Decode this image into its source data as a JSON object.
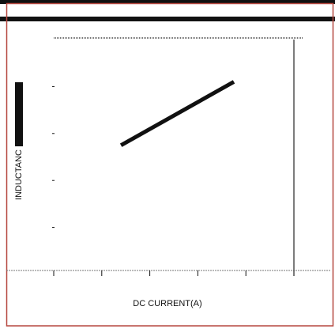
{
  "chart_data": {
    "type": "line",
    "xlabel": "DC CURRENT(A)",
    "ylabel": "INDUCTANC",
    "x_tick_count": 6,
    "y_tick_count": 5,
    "xlim": [
      0,
      5
    ],
    "ylim": [
      0,
      5
    ],
    "series": [
      {
        "values": [
          {
            "x": 1.4,
            "y": 2.75
          },
          {
            "x": 3.75,
            "y": 4.1
          }
        ]
      }
    ],
    "grid": false
  },
  "colors": {
    "frame": "#b5473f",
    "ink": "#111111",
    "dotted_line": "#777777"
  }
}
